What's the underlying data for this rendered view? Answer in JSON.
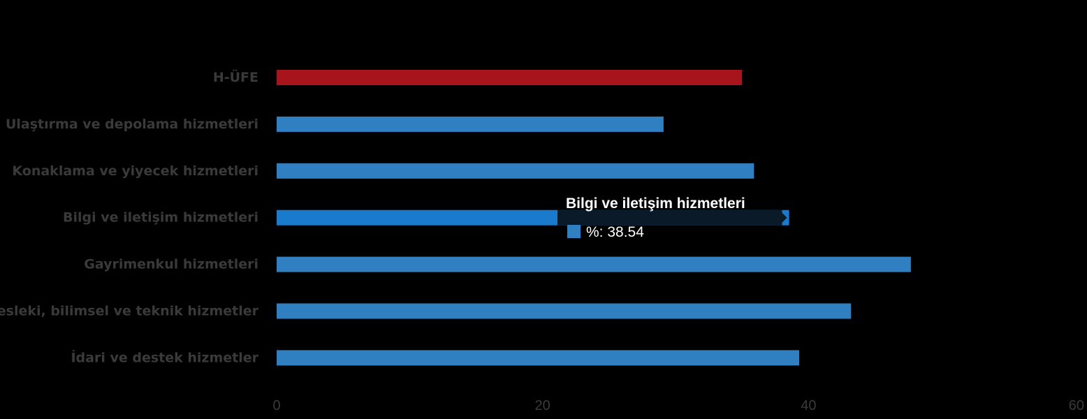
{
  "chart_data": {
    "type": "bar",
    "orientation": "horizontal",
    "categories": [
      "H-ÜFE",
      "Ulaştırma ve depolama hizmetleri",
      "Konaklama ve yiyecek hizmetleri",
      "Bilgi ve iletişim hizmetleri",
      "Gayrimenkul hizmetleri",
      "Mesleki, bilimsel ve teknik hizmetler",
      "İdari ve destek hizmetler"
    ],
    "values": [
      35.0,
      29.1,
      35.9,
      38.54,
      47.7,
      43.2,
      39.3
    ],
    "bar_colors": [
      "#a8141c",
      "#2f7fc1",
      "#2f7fc1",
      "#1a7acb",
      "#2f7fc1",
      "#2f7fc1",
      "#2f7fc1"
    ],
    "xlim": [
      0,
      60
    ],
    "xticks": [
      0,
      20,
      40,
      60
    ],
    "grid": false,
    "title": "",
    "xlabel": "",
    "ylabel": "",
    "tooltip": {
      "category_index": 3,
      "title": "Bilgi ve iletişim hizmetleri",
      "value_text": "%: 38.54",
      "swatch_color": "#2f7fc1",
      "background_color": "#0b1a28"
    }
  }
}
